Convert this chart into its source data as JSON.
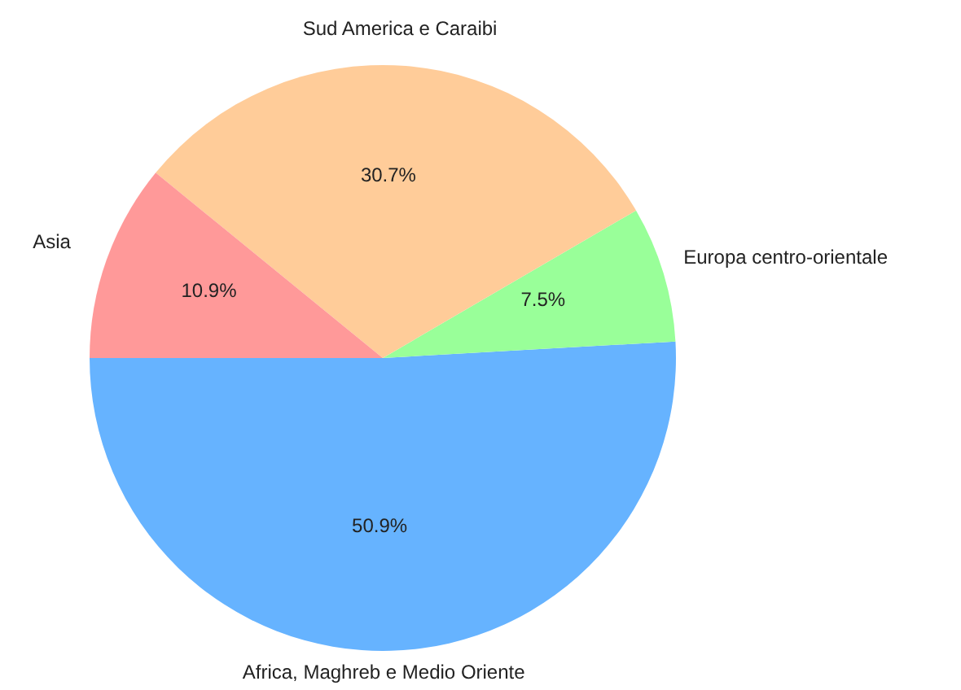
{
  "chart_data": {
    "type": "pie",
    "categories": [
      "Africa, Maghreb e Medio Oriente",
      "Europa centro-orientale",
      "Sud America e Caraibi",
      "Asia"
    ],
    "values": [
      50.9,
      7.5,
      30.7,
      10.9
    ],
    "value_labels": [
      "50.9%",
      "7.5%",
      "30.7%",
      "10.9%"
    ],
    "colors": [
      "#66b3ff",
      "#99ff99",
      "#ffcc99",
      "#ff9999"
    ],
    "legend": false
  }
}
